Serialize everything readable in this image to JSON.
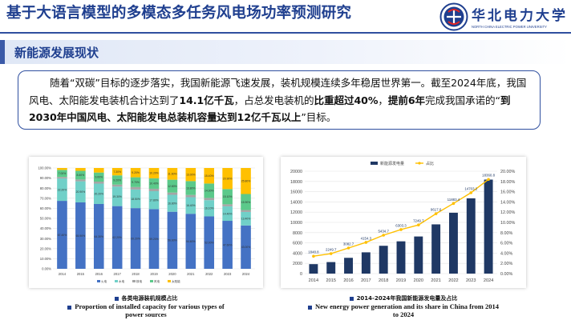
{
  "header": {
    "title": "基于大语言模型的多模态多任务风电场功率预测研究",
    "university_name_cn": "华北电力大学",
    "university_name_en": "NORTH CHINA ELECTRIC POWER UNIVERSITY",
    "accent_color": "#1f3f8f"
  },
  "section": {
    "label": "新能源发展现状"
  },
  "paragraph": {
    "p1": "随着“双碳”目标的逐步落实，我国新能源飞速发展，装机规模连续多年稳居世界第一。截至2024年底，我国风电、太阳能发电装机合计达到了",
    "p1b": "14.1亿千瓦",
    "p2": "，占总发电装机的",
    "p2b": "比重超过40%",
    "p3": "，",
    "p3b": "提前6年",
    "p4": "完成我国承诺的“",
    "p4b": "到2030年中国风电、太阳能发电总装机容量达到12亿千瓦以上",
    "p5": "”目标。"
  },
  "captions": {
    "left_cn": "各类电源装机规模占比",
    "left_en": "Proportion of installed capacity for various types of power sources",
    "right_cn": "2014-2024年我国新能源发电量及占比",
    "right_en": "New energy power generation and its share in China from 2014 to 2024"
  },
  "chart_data": [
    {
      "type": "bar",
      "stacked": true,
      "categories": [
        "2014",
        "2015",
        "2016",
        "2017",
        "2018",
        "2019",
        "2020",
        "2021",
        "2022",
        "2023",
        "2024"
      ],
      "ylim": [
        0,
        100
      ],
      "yticks": [
        "0.00%",
        "10.00%",
        "20.00%",
        "30.00%",
        "40.00%",
        "50.00%",
        "60.00%",
        "70.00%",
        "80.00%",
        "90.00%",
        "100.00%"
      ],
      "legend": [
        "火电",
        "水电",
        "核电",
        "风电",
        "太阳能"
      ],
      "series": [
        {
          "name": "火电",
          "color": "#4472c4",
          "values": [
            67.4,
            65.9,
            64.3,
            62.2,
            60.2,
            59.2,
            56.6,
            54.6,
            52.0,
            47.6,
            43.0
          ]
        },
        {
          "name": "水电",
          "color": "#70d0c8",
          "values": [
            22.2,
            20.9,
            20.2,
            19.3,
            18.5,
            17.8,
            16.8,
            16.4,
            16.1,
            14.4,
            13.4
          ]
        },
        {
          "name": "核电",
          "color": "#a5a5a5",
          "values": [
            1.5,
            1.8,
            2.0,
            2.0,
            2.4,
            2.4,
            2.2,
            2.2,
            2.2,
            2.0,
            1.9
          ]
        },
        {
          "name": "风电",
          "color": "#5bc98a",
          "values": [
            7.0,
            8.6,
            9.0,
            9.2,
            9.7,
            10.4,
            12.8,
            13.8,
            14.3,
            15.1,
            15.9
          ]
        },
        {
          "name": "太阳能",
          "color": "#ffc000",
          "values": [
            1.9,
            2.8,
            4.5,
            7.3,
            9.2,
            10.2,
            11.6,
            13.0,
            15.4,
            20.9,
            25.8
          ]
        }
      ]
    },
    {
      "type": "bar",
      "combo": "bar+line",
      "categories": [
        "2014",
        "2015",
        "2016",
        "2017",
        "2018",
        "2019",
        "2020",
        "2021",
        "2022",
        "2023",
        "2024"
      ],
      "legend": [
        "新能源发电量",
        "占比"
      ],
      "bar_series": {
        "name": "新能源发电量",
        "color": "#1f3864",
        "values": [
          1848.8,
          2249.7,
          3082.7,
          4154.3,
          5434.7,
          6303.3,
          7249.7,
          9617.6,
          11883.4,
          14703.2,
          18360.8
        ],
        "labels": [
          "1848.8",
          "2249.7",
          "3082.7",
          "4154.3",
          "5434.7",
          "6303.3",
          "7249.7",
          "9617.6",
          "11883.4",
          "14703.2",
          "18360.8"
        ]
      },
      "line_series": {
        "name": "占比",
        "color": "#ffc000",
        "values": [
          3.4,
          3.9,
          5.0,
          6.1,
          7.5,
          8.6,
          9.5,
          11.7,
          13.7,
          15.8,
          18.4
        ]
      },
      "ylim_left": [
        0,
        20000
      ],
      "yticks_left": [
        "0",
        "2000",
        "4000",
        "6000",
        "8000",
        "10000",
        "12000",
        "14000",
        "16000",
        "18000",
        "20000"
      ],
      "ylim_right": [
        0,
        20
      ],
      "yticks_right": [
        "0.00%",
        "2.00%",
        "4.00%",
        "6.00%",
        "8.00%",
        "10.00%",
        "12.00%",
        "14.00%",
        "16.00%",
        "18.00%",
        "20.00%"
      ]
    }
  ]
}
